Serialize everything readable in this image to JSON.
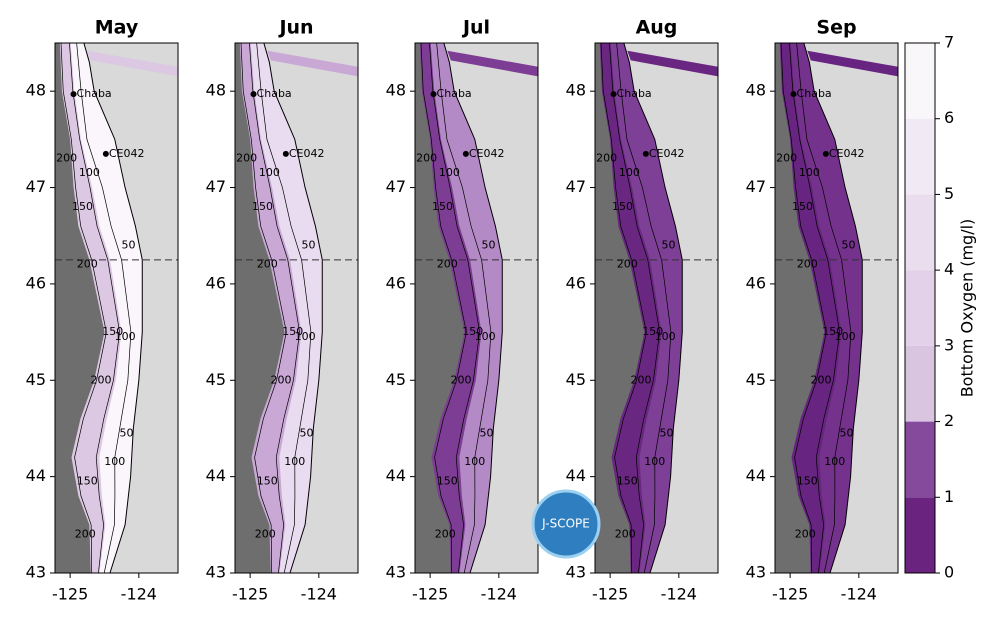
{
  "figure": {
    "panels": [
      {
        "title": "May",
        "colors": [
          "#dcc8e3",
          "#faf6fb"
        ]
      },
      {
        "title": "Jun",
        "colors": [
          "#c9a8d6",
          "#eadcf0"
        ]
      },
      {
        "title": "Jul",
        "colors": [
          "#7d3d94",
          "#b48ac6"
        ]
      },
      {
        "title": "Aug",
        "colors": [
          "#6a2782",
          "#7e3f96"
        ]
      },
      {
        "title": "Sep",
        "colors": [
          "#672480",
          "#74328c"
        ]
      }
    ],
    "ylim": [
      43,
      48.5
    ],
    "yticks": [
      43,
      44,
      45,
      46,
      47,
      48
    ],
    "xlim": [
      -125.22,
      -123.43
    ],
    "xticks": [
      -125,
      -124
    ],
    "stations": [
      "Chaba",
      "CE042"
    ],
    "contour_labels": [
      "200",
      "100",
      "150",
      "50",
      "200",
      "150",
      "100",
      "50",
      "200",
      "150",
      "100",
      "200"
    ],
    "divider_lat": 46.25,
    "colorbar": {
      "label": "Bottom Oxygen (mg/l)",
      "lim": [
        0,
        7
      ],
      "ticks": [
        0,
        1,
        2,
        3,
        4,
        5,
        6,
        7
      ],
      "colors": [
        "#6b2380",
        "#864a9d",
        "#dac5e1",
        "#e2d1e8",
        "#e9ddee",
        "#f1e9f4",
        "#faf7fb"
      ]
    },
    "logo": "J-SCOPE"
  }
}
